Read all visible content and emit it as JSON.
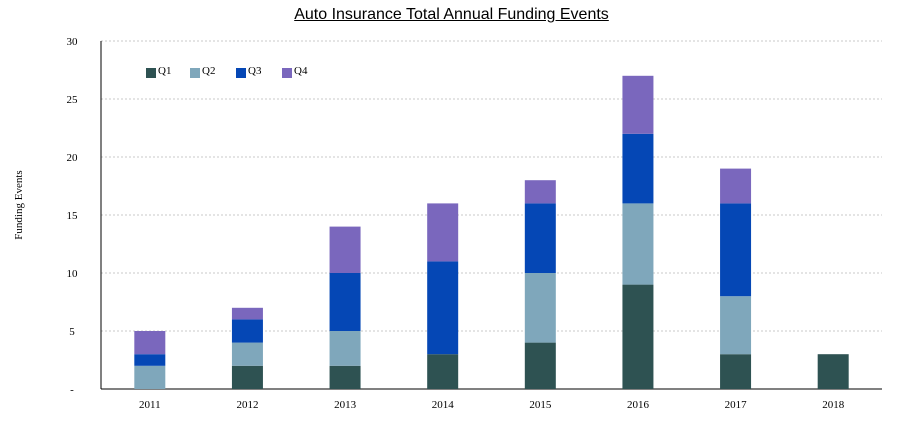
{
  "chart_data": {
    "type": "bar",
    "stacked": true,
    "title": "Auto Insurance Total Annual Funding Events",
    "xlabel": "",
    "ylabel": "Funding Events",
    "ylim": [
      0,
      30
    ],
    "ytick_labels": [
      "-",
      "5",
      "10",
      "15",
      "20",
      "25",
      "30"
    ],
    "grid": true,
    "legend_position": "top-left",
    "categories": [
      "2011",
      "2012",
      "2013",
      "2014",
      "2015",
      "2016",
      "2017",
      "2018"
    ],
    "series": [
      {
        "name": "Q1",
        "color": "#2e5252",
        "values": [
          0,
          2,
          2,
          3,
          4,
          9,
          3,
          3
        ]
      },
      {
        "name": "Q2",
        "color": "#7fa7bb",
        "values": [
          2,
          2,
          3,
          0,
          6,
          7,
          5,
          0
        ]
      },
      {
        "name": "Q3",
        "color": "#0547b5",
        "values": [
          1,
          2,
          5,
          8,
          6,
          6,
          8,
          0
        ]
      },
      {
        "name": "Q4",
        "color": "#7a67bd",
        "values": [
          2,
          1,
          4,
          5,
          2,
          5,
          3,
          0
        ]
      }
    ]
  }
}
